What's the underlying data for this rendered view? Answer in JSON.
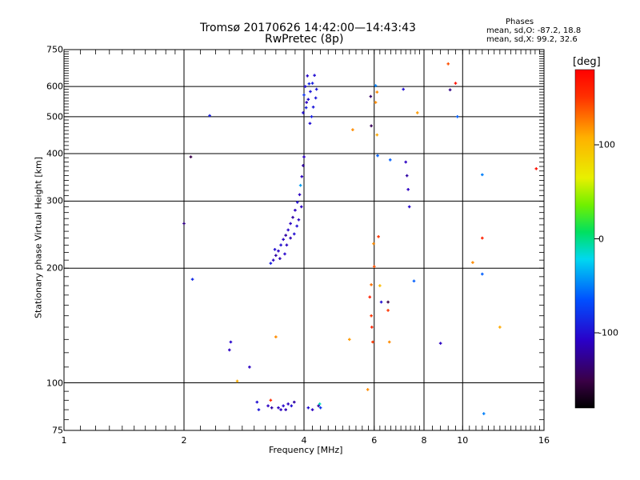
{
  "chart_data": {
    "type": "scatter",
    "title": "Tromsø 20170626 14:42:00—14:43:43",
    "subtitle": "RwPretec (8p)",
    "xlabel": "Frequency [MHz]",
    "ylabel": "Stationary phase Virtual Height [km]",
    "xscale": "log",
    "yscale": "log",
    "xlim": [
      1,
      16
    ],
    "ylim": [
      75,
      750
    ],
    "xticks": [
      "1",
      "2",
      "4",
      "6",
      "8",
      "10",
      "16"
    ],
    "xtick_values": [
      1,
      2,
      4,
      6,
      8,
      10,
      16
    ],
    "yticks": [
      "750",
      "600",
      "500",
      "400",
      "300",
      "200",
      "100",
      "75"
    ],
    "ytick_values": [
      750,
      600,
      500,
      400,
      300,
      200,
      100,
      75
    ],
    "grid": true,
    "phases": {
      "heading": "Phases",
      "o_line": "mean, sd,O: -87.2, 18.8",
      "x_line": "mean, sd,X:  99.2, 32.6"
    },
    "colorbar": {
      "label": "[deg]",
      "range": [
        -180,
        180
      ],
      "ticks": [
        "100",
        "0",
        "-100"
      ],
      "tick_values": [
        100,
        0,
        -100
      ]
    },
    "points": [
      [
        2.0,
        262,
        -130
      ],
      [
        2.08,
        392,
        -150
      ],
      [
        2.32,
        503,
        -90
      ],
      [
        2.1,
        187,
        -85
      ],
      [
        2.62,
        128,
        -105
      ],
      [
        2.6,
        122,
        -110
      ],
      [
        2.92,
        110,
        -110
      ],
      [
        3.05,
        89,
        -100
      ],
      [
        3.08,
        85,
        -95
      ],
      [
        3.3,
        90,
        155
      ],
      [
        2.72,
        101,
        110
      ],
      [
        3.4,
        132,
        120
      ],
      [
        3.25,
        87,
        -110
      ],
      [
        3.32,
        86,
        -120
      ],
      [
        3.45,
        86,
        -110
      ],
      [
        3.55,
        87,
        -105
      ],
      [
        3.65,
        88,
        -110
      ],
      [
        3.72,
        87,
        -100
      ],
      [
        3.78,
        89,
        -120
      ],
      [
        3.6,
        85,
        -115
      ],
      [
        3.5,
        85,
        -110
      ],
      [
        4.1,
        86,
        -100
      ],
      [
        4.2,
        85,
        -110
      ],
      [
        4.35,
        87,
        -120
      ],
      [
        4.38,
        88,
        -10
      ],
      [
        4.4,
        86,
        -80
      ],
      [
        3.3,
        206,
        -90
      ],
      [
        3.35,
        210,
        -110
      ],
      [
        3.4,
        216,
        -120
      ],
      [
        3.45,
        222,
        -110
      ],
      [
        3.5,
        230,
        -100
      ],
      [
        3.55,
        238,
        -110
      ],
      [
        3.6,
        244,
        -120
      ],
      [
        3.65,
        252,
        -105
      ],
      [
        3.7,
        262,
        -110
      ],
      [
        3.75,
        272,
        -120
      ],
      [
        3.8,
        284,
        -110
      ],
      [
        3.85,
        298,
        -100
      ],
      [
        3.9,
        312,
        -110
      ],
      [
        3.92,
        330,
        -40
      ],
      [
        3.95,
        348,
        -110
      ],
      [
        3.98,
        372,
        -120
      ],
      [
        4.0,
        392,
        -110
      ],
      [
        3.38,
        224,
        -100
      ],
      [
        3.48,
        212,
        -115
      ],
      [
        3.62,
        230,
        -110
      ],
      [
        3.78,
        246,
        -100
      ],
      [
        3.88,
        268,
        -110
      ],
      [
        3.58,
        218,
        -105
      ],
      [
        3.7,
        240,
        -115
      ],
      [
        3.84,
        258,
        -100
      ],
      [
        3.94,
        290,
        -110
      ],
      [
        3.98,
        512,
        -100
      ],
      [
        4.05,
        528,
        -90
      ],
      [
        4.1,
        555,
        -100
      ],
      [
        4.15,
        582,
        -95
      ],
      [
        4.2,
        612,
        -90
      ],
      [
        4.25,
        642,
        -100
      ],
      [
        4.12,
        610,
        -85
      ],
      [
        4.22,
        530,
        -95
      ],
      [
        4.03,
        600,
        -100
      ],
      [
        4.18,
        500,
        -90
      ],
      [
        4.08,
        640,
        -105
      ],
      [
        4.28,
        560,
        -95
      ],
      [
        4.14,
        480,
        -100
      ],
      [
        4.0,
        570,
        -80
      ],
      [
        4.3,
        590,
        -95
      ],
      [
        4.06,
        545,
        -110
      ],
      [
        5.2,
        130,
        115
      ],
      [
        5.3,
        462,
        120
      ],
      [
        5.78,
        96,
        120
      ],
      [
        5.85,
        168,
        160
      ],
      [
        5.9,
        150,
        150
      ],
      [
        5.92,
        140,
        160
      ],
      [
        5.95,
        128,
        150
      ],
      [
        5.98,
        232,
        120
      ],
      [
        6.0,
        202,
        140
      ],
      [
        5.9,
        181,
        130
      ],
      [
        5.88,
        565,
        -140
      ],
      [
        5.9,
        473,
        -145
      ],
      [
        6.05,
        603,
        -50
      ],
      [
        6.1,
        580,
        120
      ],
      [
        6.05,
        545,
        120
      ],
      [
        6.1,
        448,
        110
      ],
      [
        6.15,
        242,
        150
      ],
      [
        6.12,
        395,
        -60
      ],
      [
        6.2,
        180,
        100
      ],
      [
        6.25,
        163,
        -100
      ],
      [
        6.5,
        155,
        150
      ],
      [
        6.5,
        163,
        -150
      ],
      [
        6.55,
        128,
        120
      ],
      [
        6.58,
        385,
        -60
      ],
      [
        7.1,
        590,
        -100
      ],
      [
        7.2,
        380,
        -110
      ],
      [
        7.25,
        350,
        -120
      ],
      [
        7.3,
        322,
        -110
      ],
      [
        7.35,
        290,
        -105
      ],
      [
        7.55,
        185,
        -60
      ],
      [
        7.7,
        512,
        115
      ],
      [
        8.8,
        127,
        -110
      ],
      [
        9.2,
        688,
        140
      ],
      [
        9.3,
        588,
        -130
      ],
      [
        9.6,
        612,
        170
      ],
      [
        9.7,
        500,
        -60
      ],
      [
        10.6,
        207,
        120
      ],
      [
        11.2,
        240,
        160
      ],
      [
        11.2,
        352,
        -50
      ],
      [
        11.2,
        193,
        -60
      ],
      [
        11.3,
        83,
        -50
      ],
      [
        12.4,
        140,
        110
      ],
      [
        15.3,
        365,
        170
      ]
    ]
  }
}
